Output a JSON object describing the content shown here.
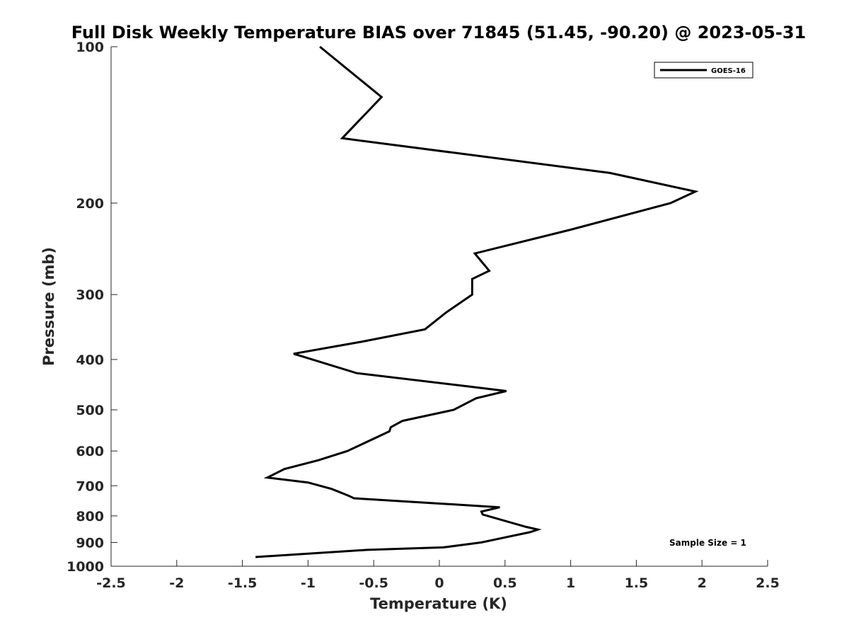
{
  "chart_data": {
    "type": "line",
    "title": "Full Disk Weekly Temperature BIAS over 71845 (51.45, -90.20) @ 2023-05-31",
    "xlabel": "Temperature (K)",
    "ylabel": "Pressure (mb)",
    "xlim": [
      -2.5,
      2.5
    ],
    "ylim": [
      1000,
      100
    ],
    "y_scale": "log",
    "x_ticks": [
      -2.5,
      -2,
      -1.5,
      -1,
      -0.5,
      0,
      0.5,
      1,
      1.5,
      2,
      2.5
    ],
    "x_tick_labels": [
      "-2.5",
      "-2",
      "-1.5",
      "-1",
      "-0.5",
      "0",
      "0.5",
      "1",
      "1.5",
      "2",
      "2.5"
    ],
    "y_ticks": [
      100,
      200,
      300,
      400,
      500,
      600,
      700,
      800,
      900,
      1000
    ],
    "y_tick_labels": [
      "100",
      "200",
      "300",
      "400",
      "500",
      "600",
      "700",
      "800",
      "900",
      "1000"
    ],
    "grid": false,
    "legend_position": "top-right",
    "line_color": "#000000",
    "series": [
      {
        "name": "GOES-16",
        "points": [
          [
            -0.91,
            100
          ],
          [
            -0.44,
            125
          ],
          [
            -0.74,
            150
          ],
          [
            1.3,
            175
          ],
          [
            1.95,
            190
          ],
          [
            1.76,
            200
          ],
          [
            1.0,
            225
          ],
          [
            0.27,
            250
          ],
          [
            0.38,
            270
          ],
          [
            0.25,
            280
          ],
          [
            0.25,
            300
          ],
          [
            0.05,
            325
          ],
          [
            -0.11,
            350
          ],
          [
            -0.6,
            370
          ],
          [
            -1.11,
            390
          ],
          [
            -0.63,
            425
          ],
          [
            0.2,
            450
          ],
          [
            0.51,
            460
          ],
          [
            0.28,
            475
          ],
          [
            0.11,
            500
          ],
          [
            -0.28,
            525
          ],
          [
            -0.37,
            540
          ],
          [
            -0.38,
            550
          ],
          [
            -0.7,
            600
          ],
          [
            -0.92,
            625
          ],
          [
            -1.18,
            650
          ],
          [
            -1.31,
            675
          ],
          [
            -1.0,
            690
          ],
          [
            -0.82,
            710
          ],
          [
            -0.7,
            730
          ],
          [
            -0.65,
            740
          ],
          [
            0.46,
            770
          ],
          [
            0.32,
            785
          ],
          [
            0.33,
            795
          ],
          [
            0.66,
            840
          ],
          [
            0.75,
            850
          ],
          [
            0.69,
            860
          ],
          [
            0.5,
            880
          ],
          [
            0.32,
            900
          ],
          [
            0.03,
            920
          ],
          [
            -0.55,
            930
          ],
          [
            -1.4,
            960
          ]
        ]
      }
    ],
    "annotations": [
      "Sample Size = 1"
    ]
  }
}
